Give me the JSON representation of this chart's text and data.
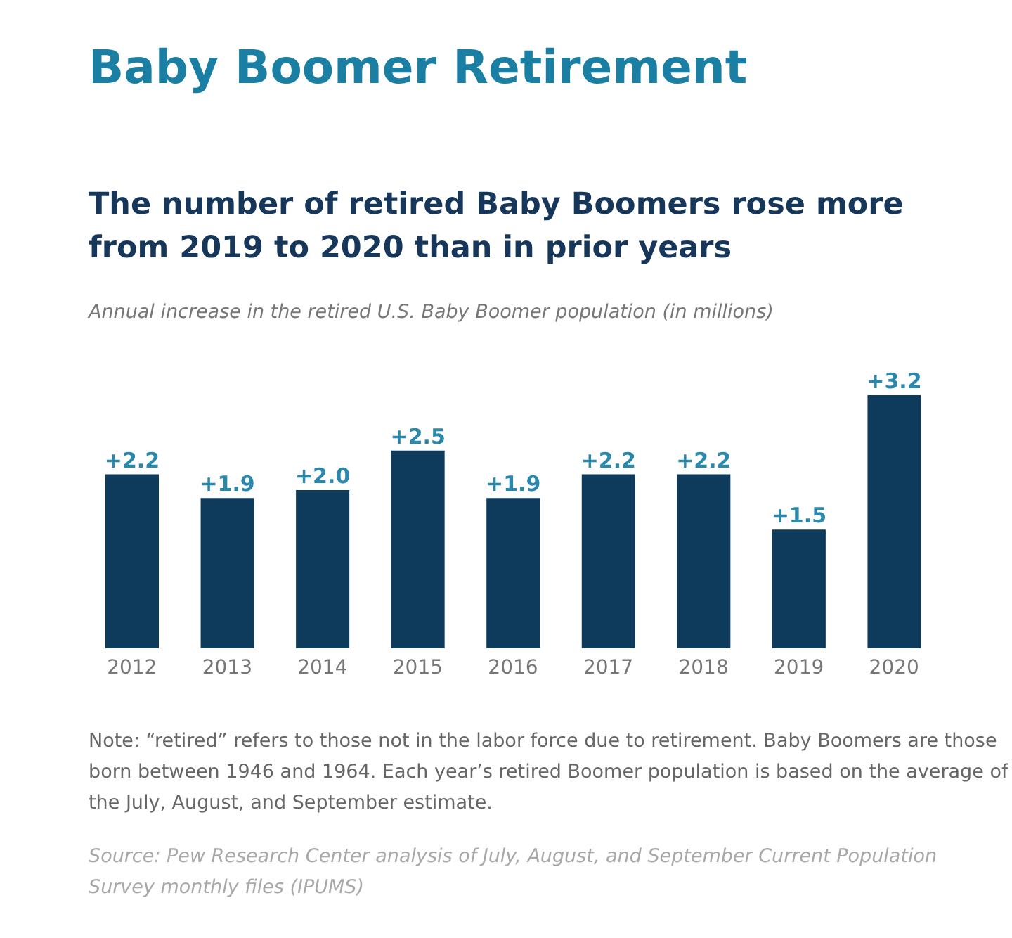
{
  "chart_data": {
    "type": "bar",
    "title": "Baby Boomer Retirement",
    "subtitle": "The number of retired Baby Boomers rose more from 2019 to 2020 than in prior years",
    "ylabel": "Annual increase in the retired U.S. Baby Boomer population (in millions)",
    "categories": [
      "2012",
      "2013",
      "2014",
      "2015",
      "2016",
      "2017",
      "2018",
      "2019",
      "2020"
    ],
    "values": [
      2.2,
      1.9,
      2.0,
      2.5,
      1.9,
      2.2,
      2.2,
      1.5,
      3.2
    ],
    "value_labels": [
      "+2.2",
      "+1.9",
      "+2.0",
      "+2.5",
      "+1.9",
      "+2.2",
      "+2.2",
      "+1.5",
      "+3.2"
    ],
    "color": "#0e3a5b",
    "annotations": [
      "Note: “retired” refers to those not in the labor force due to retirement. Baby Boomers are those born between 1946 and 1964. Each year’s retired Boomer population is based on the average of the July, August, and September estimate.",
      "Source: Pew Research Center analysis of July, August, and September Current Population Survey monthly files (IPUMS)"
    ],
    "grid": false,
    "legend": false
  }
}
